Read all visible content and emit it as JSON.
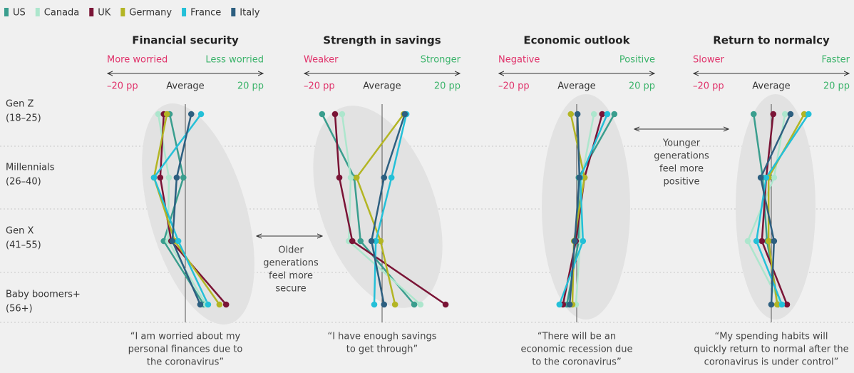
{
  "legend": [
    {
      "name": "US",
      "color": "#3a9e8e"
    },
    {
      "name": "Canada",
      "color": "#ade6cd"
    },
    {
      "name": "UK",
      "color": "#7a1436"
    },
    {
      "name": "Germany",
      "color": "#b3b524"
    },
    {
      "name": "France",
      "color": "#24c0d8"
    },
    {
      "name": "Italy",
      "color": "#2d5f80"
    }
  ],
  "rows": [
    {
      "name": "Gen Z",
      "range": "(18–25)"
    },
    {
      "name": "Millennials",
      "range": "(26–40)"
    },
    {
      "name": "Gen X",
      "range": "(41–55)"
    },
    {
      "name": "Baby boomers+",
      "range": "(56+)"
    }
  ],
  "annotations": [
    {
      "lines": [
        "Older",
        "generations",
        "feel more",
        "secure"
      ]
    },
    {
      "lines": [
        "Younger",
        "generations",
        "feel more",
        "positive"
      ]
    }
  ],
  "chart_data": [
    {
      "type": "line",
      "title": "Financial security",
      "left_label": "More worried",
      "right_label": "Less worried",
      "xlim": [
        -20,
        20
      ],
      "xticks": [
        {
          "value": -20,
          "label": "–20 pp"
        },
        {
          "value": 0,
          "label": "Average"
        },
        {
          "value": 20,
          "label": "20 pp"
        }
      ],
      "quote": [
        "“I am worried about my",
        "personal finances due to",
        "the coronavirus”"
      ],
      "series": [
        {
          "values": [
            -4,
            -0.5,
            -5.5,
            4.7
          ]
        },
        {
          "values": [
            -6.9,
            -4.2,
            -4.4,
            5.3
          ]
        },
        {
          "values": [
            -5.5,
            -6.4,
            -3.6,
            10.4
          ]
        },
        {
          "values": [
            -4.7,
            -8,
            -2.7,
            8.7
          ]
        },
        {
          "values": [
            4,
            -8,
            -1.8,
            5.8
          ]
        },
        {
          "values": [
            1.5,
            -2.2,
            -3.3,
            3.8
          ]
        }
      ]
    },
    {
      "type": "line",
      "title": "Strength in savings",
      "left_label": "Weaker",
      "right_label": "Stronger",
      "xlim": [
        -20,
        20
      ],
      "xticks": [
        {
          "value": -20,
          "label": "–20 pp"
        },
        {
          "value": 0,
          "label": "Average"
        },
        {
          "value": 20,
          "label": "20 pp"
        }
      ],
      "quote": [
        "“I have enough savings",
        "to get through”"
      ],
      "series": [
        {
          "values": [
            -15.3,
            -7.1,
            -5.5,
            8.2
          ]
        },
        {
          "values": [
            -10.2,
            -8,
            -8.5,
            9.8
          ]
        },
        {
          "values": [
            -12,
            -10.9,
            -7.6,
            16.2
          ]
        },
        {
          "values": [
            5.5,
            -6.5,
            -0.4,
            3.3
          ]
        },
        {
          "values": [
            6.2,
            2.4,
            -1.6,
            -2
          ]
        },
        {
          "values": [
            5.8,
            0.5,
            -2.7,
            0.5
          ]
        }
      ]
    },
    {
      "type": "line",
      "title": "Economic outlook",
      "left_label": "Negative",
      "right_label": "Positive",
      "xlim": [
        -20,
        20
      ],
      "xticks": [
        {
          "value": -20,
          "label": "–20 pp"
        },
        {
          "value": 0,
          "label": "Average"
        },
        {
          "value": 20,
          "label": "20 pp"
        }
      ],
      "quote": [
        "“There will be an",
        "economic recession due",
        "to the coronavirus”"
      ],
      "series": [
        {
          "values": [
            9.6,
            0.5,
            0.5,
            -2.5
          ]
        },
        {
          "values": [
            4.4,
            1.3,
            0.9,
            -0.2
          ]
        },
        {
          "values": [
            6.5,
            2,
            -0.2,
            -3.5
          ]
        },
        {
          "values": [
            -1.5,
            2,
            -0.7,
            -1.1
          ]
        },
        {
          "values": [
            7.8,
            0.9,
            1.6,
            -4.4
          ]
        },
        {
          "values": [
            0.2,
            0.7,
            -0.5,
            -1.8
          ]
        }
      ]
    },
    {
      "type": "line",
      "title": "Return to normalcy",
      "left_label": "Slower",
      "right_label": "Faster",
      "xlim": [
        -20,
        20
      ],
      "xticks": [
        {
          "value": -20,
          "label": "–20 pp"
        },
        {
          "value": 0,
          "label": "Average"
        },
        {
          "value": 20,
          "label": "20 pp"
        }
      ],
      "quote": [
        "“My spending habits will",
        "quickly return to normal after the",
        "coronavirus is under control”"
      ],
      "series": [
        {
          "values": [
            -4.5,
            -2.2,
            -1.1,
            1.8
          ]
        },
        {
          "values": [
            3.5,
            0.7,
            -6,
            2.4
          ]
        },
        {
          "values": [
            0.5,
            -1.3,
            -2.4,
            4
          ]
        },
        {
          "values": [
            8.4,
            -0.7,
            -0.7,
            1.5
          ]
        },
        {
          "values": [
            9.5,
            -1.3,
            -3.8,
            2.7
          ]
        },
        {
          "values": [
            4.9,
            -2.7,
            0.7,
            0
          ]
        }
      ]
    }
  ]
}
